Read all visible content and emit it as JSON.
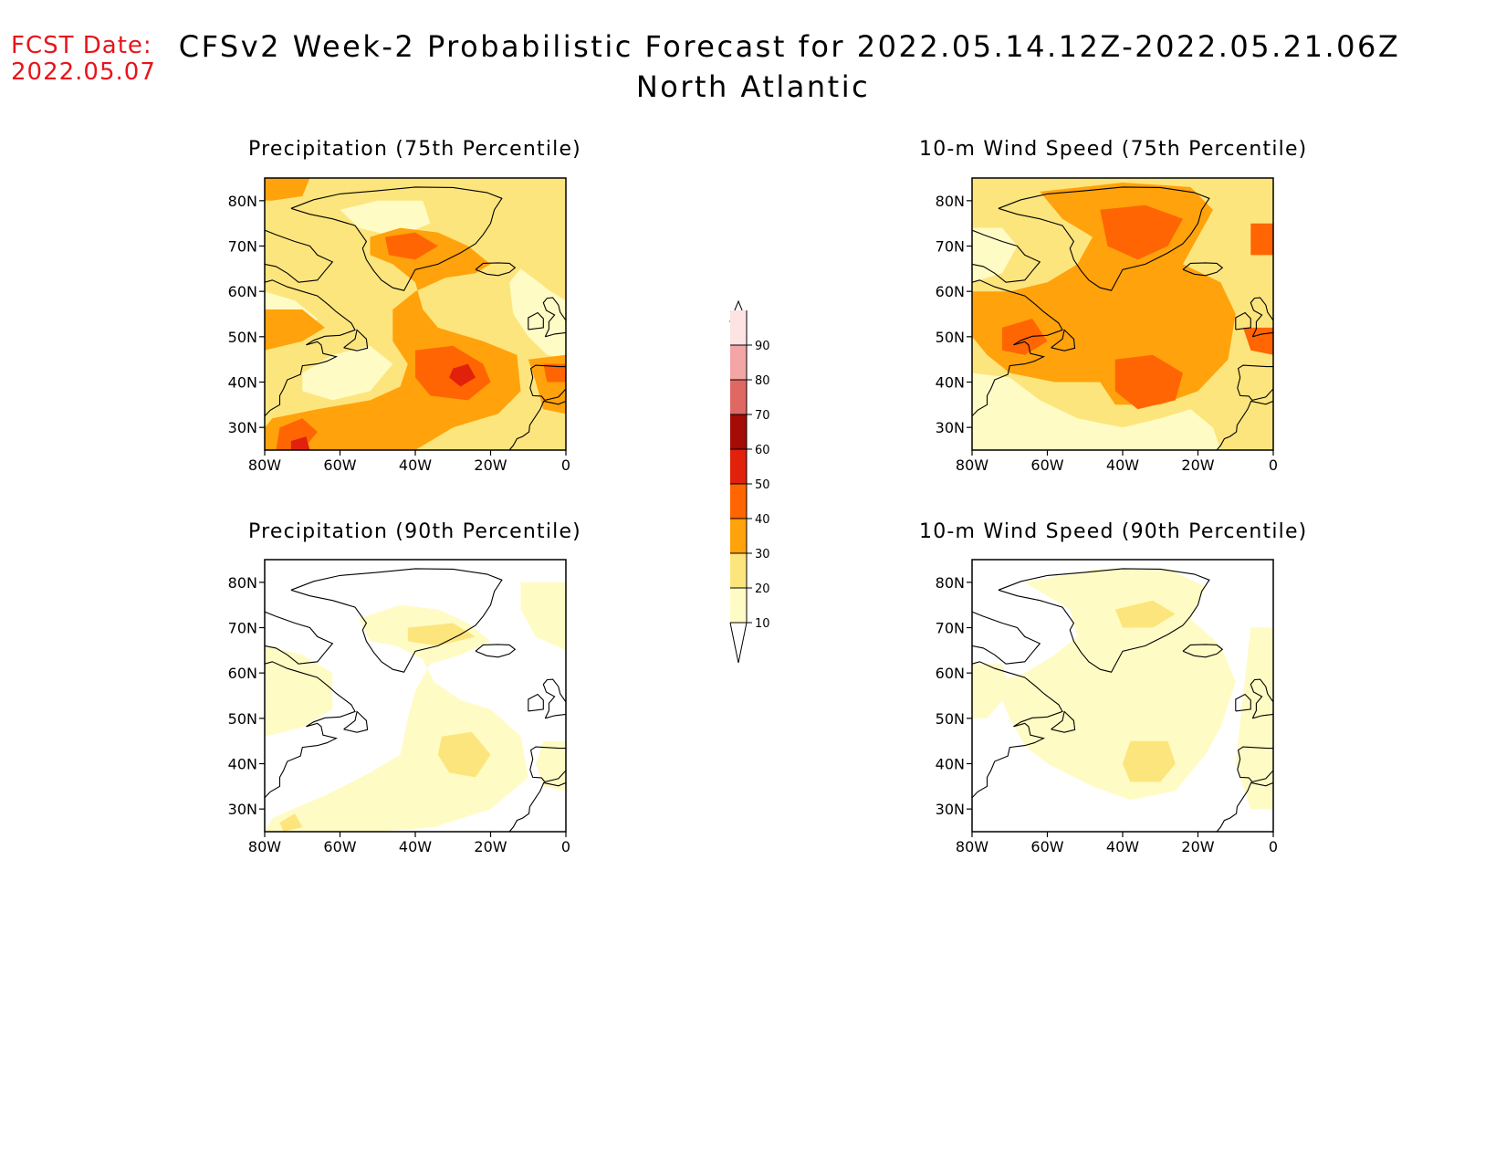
{
  "header": {
    "fcst_label": "FCST Date:",
    "fcst_date": "2022.05.07",
    "title": "CFSv2 Week-2 Probabilistic Forecast for 2022.05.14.12Z-2022.05.21.06Z",
    "subtitle": "North Atlantic"
  },
  "axes": {
    "lat_ticks": [
      "80N",
      "70N",
      "60N",
      "50N",
      "40N",
      "30N"
    ],
    "lon_ticks": [
      "80W",
      "60W",
      "40W",
      "20W",
      "0"
    ]
  },
  "colorbar": {
    "levels": [
      {
        "label": "10",
        "color": "#fffbc4"
      },
      {
        "label": "20",
        "color": "#fde57d"
      },
      {
        "label": "30",
        "color": "#ffa20b"
      },
      {
        "label": "40",
        "color": "#ff6502"
      },
      {
        "label": "50",
        "color": "#e1210b"
      },
      {
        "label": "60",
        "color": "#a40c05"
      },
      {
        "label": "70",
        "color": "#e06864"
      },
      {
        "label": "80",
        "color": "#f2a6a6"
      },
      {
        "label": "90",
        "color": "#fde3e3"
      }
    ]
  },
  "panels": [
    {
      "title": "Precipitation (75th Percentile)",
      "variable": "precipitation",
      "percentile": "75th"
    },
    {
      "title": "10-m Wind Speed (75th Percentile)",
      "variable": "wind-speed",
      "percentile": "75th"
    },
    {
      "title": "Precipitation (90th Percentile)",
      "variable": "precipitation",
      "percentile": "90th"
    },
    {
      "title": "10-m Wind Speed (90th Percentile)",
      "variable": "wind-speed",
      "percentile": "90th"
    }
  ]
}
